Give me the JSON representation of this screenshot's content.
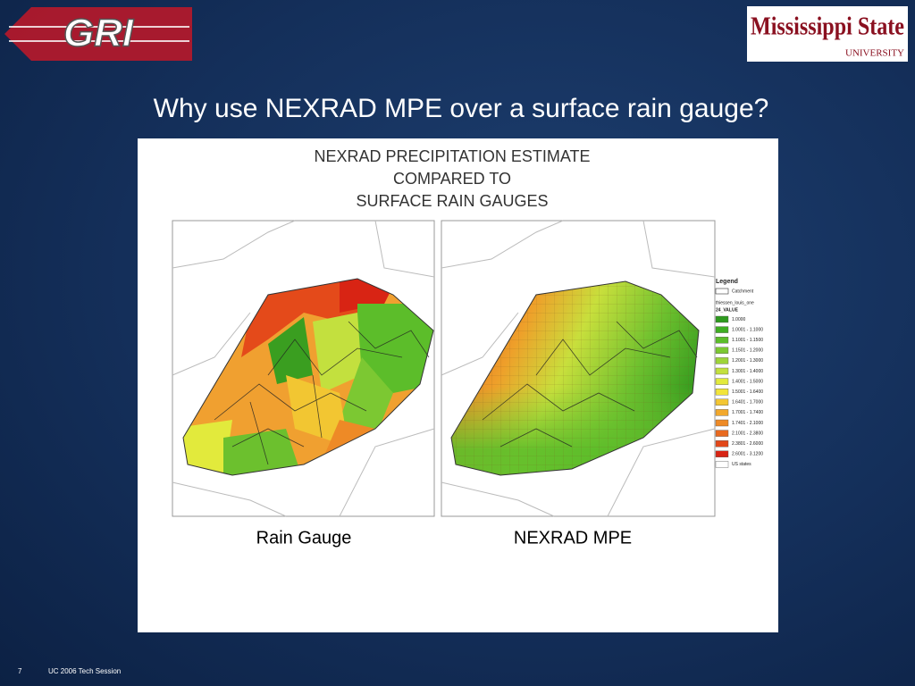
{
  "header": {
    "logo_left": "GRI",
    "logo_right": "Mississippi State",
    "logo_right_sub": "UNIVERSITY",
    "title": "Why use NEXRAD MPE over a surface rain gauge?"
  },
  "figure": {
    "heading": [
      "NEXRAD PRECIPITATION ESTIMATE",
      "COMPARED TO",
      "SURFACE RAIN GAUGES"
    ],
    "captions": [
      "Rain Gauge",
      "NEXRAD MPE"
    ],
    "legend": {
      "title": "Legend",
      "catchment": "Catchment",
      "layer": "thiessen_louis_one",
      "field": "24_VALUE",
      "items": [
        {
          "label": "1.0000",
          "color": "#2e9a1e"
        },
        {
          "label": "1.0001 - 1.1000",
          "color": "#3fae22"
        },
        {
          "label": "1.1001 - 1.1500",
          "color": "#5cbd2a"
        },
        {
          "label": "1.1501 - 1.2000",
          "color": "#7cc832"
        },
        {
          "label": "1.2001 - 1.3000",
          "color": "#9ed43a"
        },
        {
          "label": "1.3001 - 1.4000",
          "color": "#c3e03e"
        },
        {
          "label": "1.4001 - 1.5000",
          "color": "#e2ea3c"
        },
        {
          "label": "1.5001 - 1.6400",
          "color": "#f2e43a"
        },
        {
          "label": "1.6401 - 1.7000",
          "color": "#f3c632"
        },
        {
          "label": "1.7001 - 1.7400",
          "color": "#f2a82c"
        },
        {
          "label": "1.7401 - 2.1000",
          "color": "#ee8a26"
        },
        {
          "label": "2.1001 - 2.3800",
          "color": "#e96a20"
        },
        {
          "label": "2.3801 - 2.6000",
          "color": "#e2481a"
        },
        {
          "label": "2.6001 - 3.1200",
          "color": "#d82414"
        },
        {
          "label": "US states",
          "color": "#ffffff"
        }
      ]
    }
  },
  "footer": {
    "page": "7",
    "session": "UC 2006 Tech Session"
  }
}
